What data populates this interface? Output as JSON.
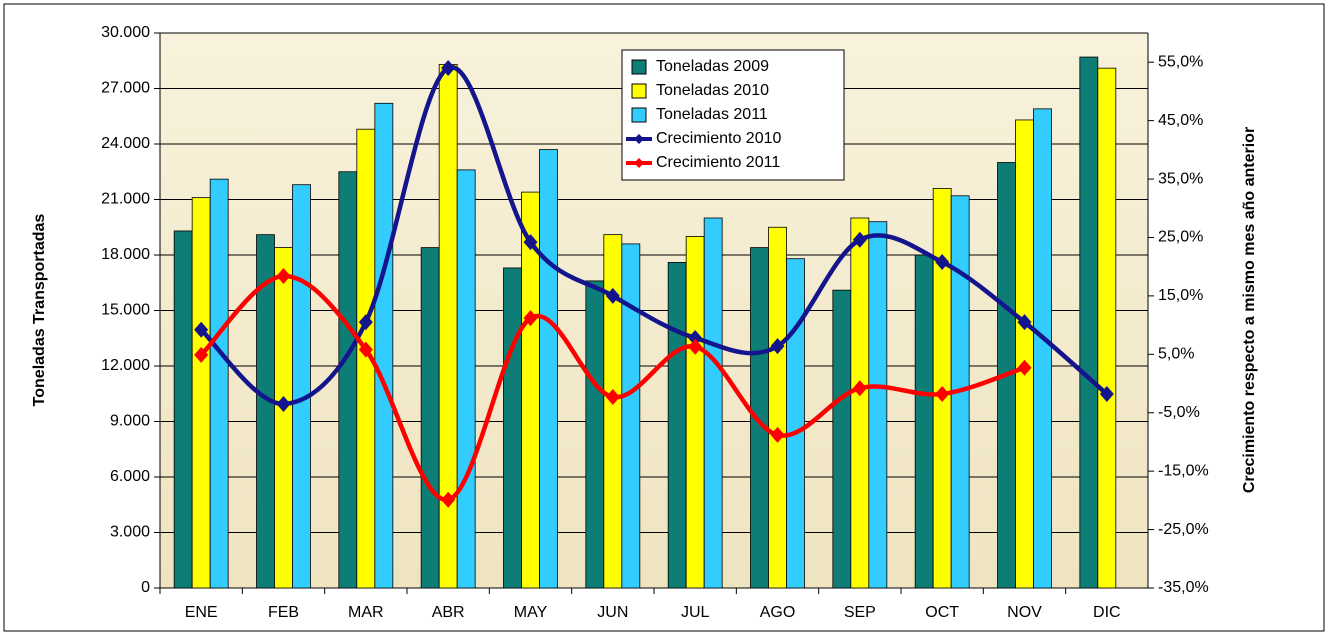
{
  "chart_data": {
    "type": "bar",
    "y_label": "Toneladas Transportadas",
    "y2_label": "Crecimiento respecto a mismo mes año anterior",
    "categories": [
      "ENE",
      "FEB",
      "MAR",
      "ABR",
      "MAY",
      "JUN",
      "JUL",
      "AGO",
      "SEP",
      "OCT",
      "NOV",
      "DIC"
    ],
    "series": [
      {
        "name": "Toneladas 2009",
        "type": "bar",
        "color": "#0e7d76",
        "values": [
          19300,
          19100,
          22500,
          18400,
          17300,
          16600,
          17600,
          18400,
          16100,
          18000,
          23000,
          28700
        ]
      },
      {
        "name": "Toneladas 2010",
        "type": "bar",
        "color": "#ffff00",
        "values": [
          21100,
          18400,
          24800,
          28300,
          21400,
          19100,
          19000,
          19500,
          20000,
          21600,
          25300,
          28100
        ]
      },
      {
        "name": "Toneladas 2011",
        "type": "bar",
        "color": "#33ccff",
        "values": [
          22100,
          21800,
          26200,
          22600,
          23700,
          18600,
          20000,
          17800,
          19800,
          21200,
          25900,
          null
        ]
      },
      {
        "name": "Crecimiento 2010",
        "type": "line",
        "axis": "y2",
        "color": "#14148c",
        "values": [
          9.2,
          -3.5,
          10.5,
          54,
          24.2,
          15,
          7.8,
          6.4,
          24.6,
          20.8,
          10.5,
          -1.8
        ]
      },
      {
        "name": "Crecimiento 2011",
        "type": "line",
        "axis": "y2",
        "color": "#ff0000",
        "values": [
          4.9,
          18.4,
          5.8,
          -19.9,
          11.2,
          -2.3,
          6.3,
          -8.8,
          -0.8,
          -1.8,
          2.7,
          null
        ]
      }
    ],
    "ylim": [
      0,
      30000
    ],
    "yticks": [
      0,
      {
        "value": 3000,
        "label": "3.000"
      },
      {
        "value": 6000,
        "label": "6.000"
      },
      {
        "value": 9000,
        "label": "9.000"
      },
      {
        "value": 12000,
        "label": "12.000"
      },
      {
        "value": 15000,
        "label": "15.000"
      },
      {
        "value": 18000,
        "label": "18.000"
      },
      {
        "value": 21000,
        "label": "21.000"
      },
      {
        "value": 24000,
        "label": "24.000"
      },
      {
        "value": 27000,
        "label": "27.000"
      },
      {
        "value": 30000,
        "label": "30.000"
      }
    ],
    "y2lim": [
      -35,
      60
    ],
    "y2ticks": [
      {
        "value": -35,
        "label": "-35,0%"
      },
      {
        "value": -25,
        "label": "-25,0%"
      },
      {
        "value": -15,
        "label": "-15,0%"
      },
      {
        "value": -5,
        "label": "-5,0%"
      },
      {
        "value": 5,
        "label": "5,0%"
      },
      {
        "value": 15,
        "label": "15,0%"
      },
      {
        "value": 25,
        "label": "25,0%"
      },
      {
        "value": 35,
        "label": "35,0%"
      },
      {
        "value": 45,
        "label": "45,0%"
      },
      {
        "value": 55,
        "label": "55,0%"
      }
    ],
    "grid": true
  }
}
